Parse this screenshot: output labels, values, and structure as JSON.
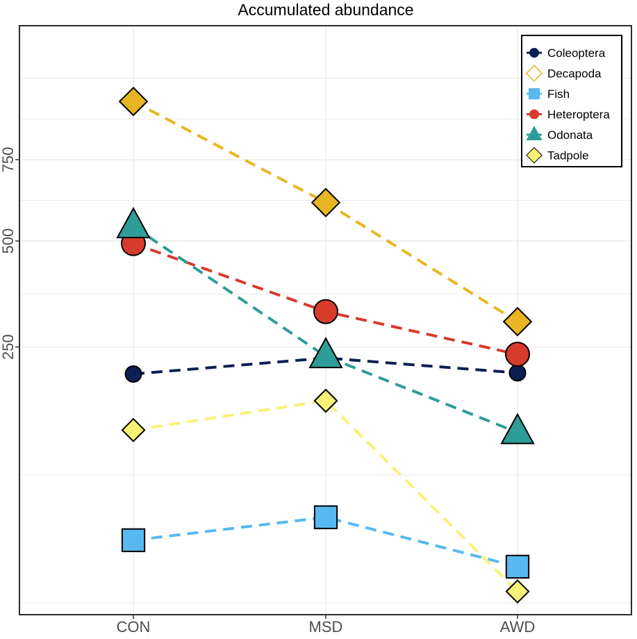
{
  "chart_data": {
    "type": "line",
    "title": "Accumulated abundance",
    "xlabel": "",
    "ylabel": "",
    "categories": [
      "CON",
      "MSD",
      "AWD"
    ],
    "y_ticks": [
      250,
      500,
      750
    ],
    "y_scale": "sqrt",
    "ylim": [
      0,
      1000
    ],
    "grid": true,
    "legend_position": "top-right",
    "line_style": "dashed",
    "series": [
      {
        "name": "Coleoptera",
        "values": [
          200,
          229,
          202
        ],
        "color": "#0c1f55",
        "marker": "circle"
      },
      {
        "name": "Decapoda",
        "values": [
          960,
          612,
          302
        ],
        "color": "#e9b523",
        "marker": "diamond"
      },
      {
        "name": "Fish",
        "values": [
          15,
          28,
          5
        ],
        "color": "#57b9f0",
        "marker": "square"
      },
      {
        "name": "Heteroptera",
        "values": [
          493,
          324,
          236
        ],
        "color": "#d73b2c",
        "marker": "circle"
      },
      {
        "name": "Odonata",
        "values": [
          541,
          232,
          111
        ],
        "color": "#2e9c97",
        "marker": "triangle"
      },
      {
        "name": "Tadpole",
        "values": [
          114,
          156,
          0.5
        ],
        "color": "#f8f275",
        "marker": "diamond"
      }
    ]
  }
}
